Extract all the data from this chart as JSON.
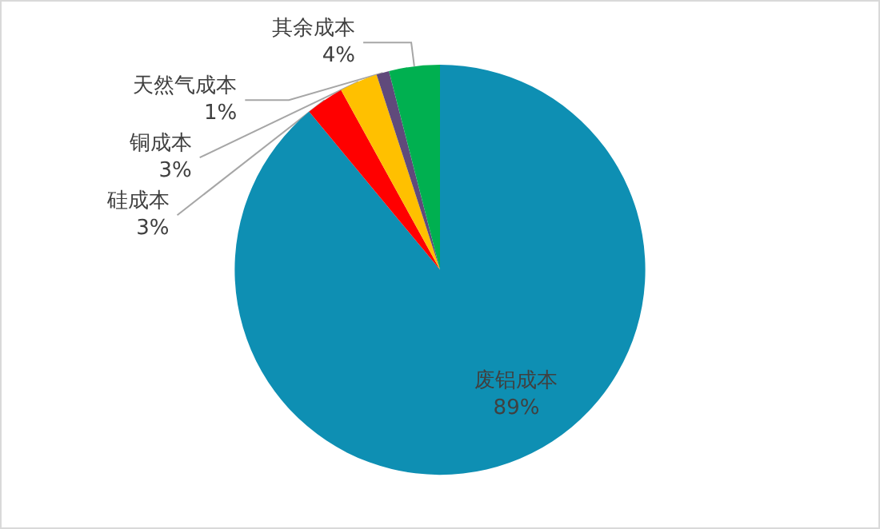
{
  "chart_data": {
    "type": "pie",
    "categories": [
      "废铝成本",
      "硅成本",
      "铜成本",
      "天然气成本",
      "其余成本"
    ],
    "values": [
      89,
      3,
      3,
      1,
      4
    ],
    "colors": [
      "#0e8fb3",
      "#ff0000",
      "#ffc000",
      "#604a7b",
      "#00b050"
    ],
    "value_labels": [
      "89%",
      "3%",
      "3%",
      "1%",
      "4%"
    ],
    "legend": false
  }
}
